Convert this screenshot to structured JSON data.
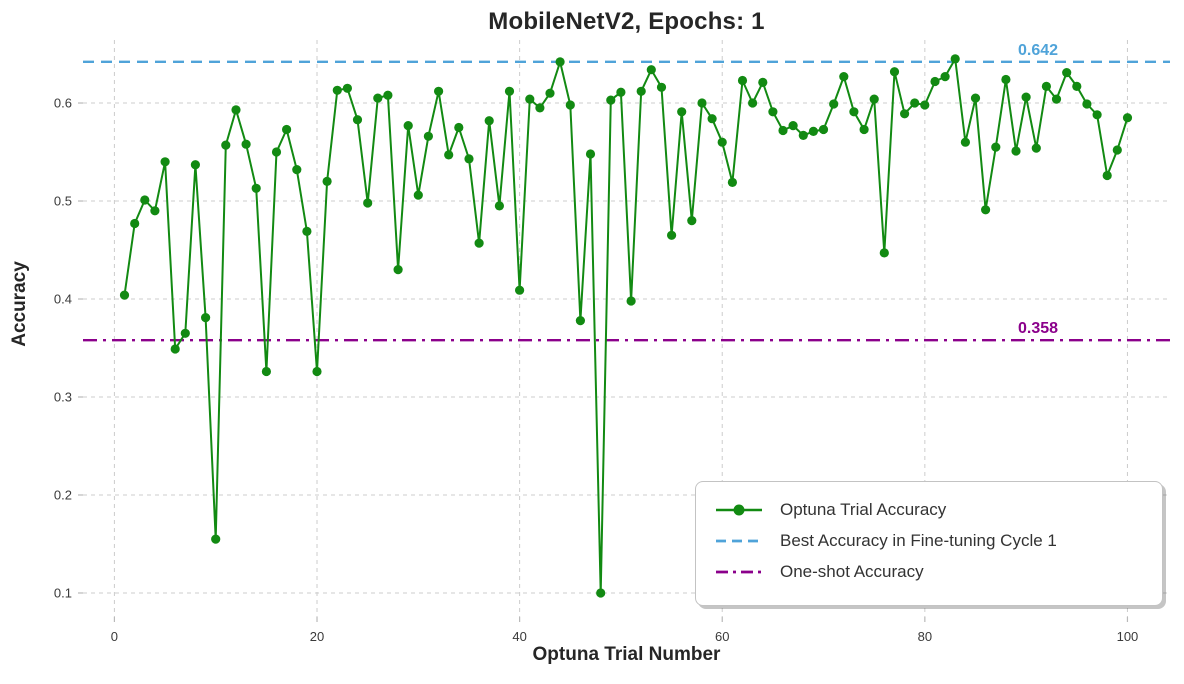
{
  "window": {
    "kind": "static-chart-figure"
  },
  "colors": {
    "trial_line": "#128a12",
    "best_line": "#4fa3d9",
    "oneshot_line": "#8B008B",
    "grid": "#cccccc",
    "tick_text": "#3a3a3a",
    "label_text": "#262626",
    "legend_text": "#333333",
    "background": "#ffffff"
  },
  "chart_data": {
    "type": "line",
    "title": "MobileNetV2, Epochs: 1",
    "xlabel": "Optuna Trial Number",
    "ylabel": "Accuracy",
    "x_ticks": [
      0,
      20,
      40,
      60,
      80,
      100
    ],
    "y_ticks": [
      0.1,
      0.2,
      0.3,
      0.4,
      0.5,
      0.6
    ],
    "xlim": [
      -3.1,
      104.2
    ],
    "ylim": [
      0.0755,
      0.6643
    ],
    "grid": true,
    "grid_style": "dashed",
    "legend_position": "lower right",
    "series": [
      {
        "name": "Optuna Trial Accuracy",
        "marker": "circle",
        "color_key": "trial_line",
        "x": [
          1,
          2,
          3,
          4,
          5,
          6,
          7,
          8,
          9,
          10,
          11,
          12,
          13,
          14,
          15,
          16,
          17,
          18,
          19,
          20,
          21,
          22,
          23,
          24,
          25,
          26,
          27,
          28,
          29,
          30,
          31,
          32,
          33,
          34,
          35,
          36,
          37,
          38,
          39,
          40,
          41,
          42,
          43,
          44,
          45,
          46,
          47,
          48,
          49,
          50,
          51,
          52,
          53,
          54,
          55,
          56,
          57,
          58,
          59,
          60,
          61,
          62,
          63,
          64,
          65,
          66,
          67,
          68,
          69,
          70,
          71,
          72,
          73,
          74,
          75,
          76,
          77,
          78,
          79,
          80,
          81,
          82,
          83,
          84,
          85,
          86,
          87,
          88,
          89,
          90,
          91,
          92,
          93,
          94,
          95,
          96,
          97,
          98,
          99,
          100
        ],
        "values": [
          0.404,
          0.477,
          0.501,
          0.49,
          0.54,
          0.349,
          0.365,
          0.537,
          0.381,
          0.155,
          0.557,
          0.593,
          0.558,
          0.513,
          0.326,
          0.55,
          0.573,
          0.532,
          0.469,
          0.326,
          0.52,
          0.613,
          0.615,
          0.583,
          0.498,
          0.605,
          0.608,
          0.43,
          0.577,
          0.506,
          0.566,
          0.612,
          0.547,
          0.575,
          0.543,
          0.457,
          0.582,
          0.495,
          0.612,
          0.409,
          0.604,
          0.595,
          0.61,
          0.642,
          0.598,
          0.378,
          0.548,
          0.1,
          0.603,
          0.611,
          0.398,
          0.612,
          0.634,
          0.616,
          0.465,
          0.591,
          0.48,
          0.6,
          0.584,
          0.56,
          0.519,
          0.623,
          0.6,
          0.621,
          0.591,
          0.572,
          0.577,
          0.567,
          0.571,
          0.573,
          0.599,
          0.627,
          0.591,
          0.573,
          0.604,
          0.447,
          0.632,
          0.589,
          0.6,
          0.598,
          0.622,
          0.627,
          0.645,
          0.56,
          0.605,
          0.491,
          0.555,
          0.624,
          0.551,
          0.606,
          0.554,
          0.617,
          0.604,
          0.631,
          0.617,
          0.599,
          0.588,
          0.526,
          0.552,
          0.585
        ]
      }
    ],
    "ref_lines": [
      {
        "name": "Best Accuracy in Fine-tuning Cycle 1",
        "value": 0.642,
        "annotation": "0.642",
        "style": "dashed",
        "color_key": "best_line"
      },
      {
        "name": "One-shot Accuracy",
        "value": 0.358,
        "annotation": "0.358",
        "style": "dashdot",
        "color_key": "oneshot_line"
      }
    ],
    "legend": {
      "entries": [
        {
          "label": "Optuna Trial Accuracy",
          "sample": "solid-line-with-dot",
          "color_key": "trial_line"
        },
        {
          "label": "Best Accuracy in Fine-tuning Cycle 1",
          "sample": "dashed-line",
          "color_key": "best_line"
        },
        {
          "label": "One-shot Accuracy",
          "sample": "dashdot-line",
          "color_key": "oneshot_line"
        }
      ]
    }
  }
}
